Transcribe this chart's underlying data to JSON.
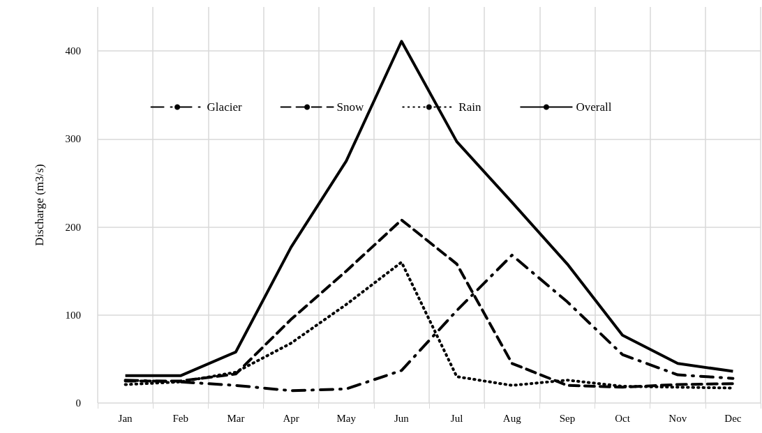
{
  "chart_data": {
    "type": "line",
    "ylabel": "Discharge (m3/s)",
    "categories": [
      "Jan",
      "Feb",
      "Mar",
      "Apr",
      "May",
      "Jun",
      "Jul",
      "Aug",
      "Sep",
      "Oct",
      "Nov",
      "Dec"
    ],
    "series": [
      {
        "name": "Glacier",
        "color": "#000000",
        "line_style": "dashdot",
        "values": [
          26,
          24,
          20,
          14,
          16,
          37,
          105,
          168,
          115,
          55,
          32,
          28
        ]
      },
      {
        "name": "Snow",
        "color": "#000000",
        "line_style": "dashed",
        "values": [
          25,
          25,
          33,
          95,
          150,
          208,
          158,
          45,
          20,
          18,
          21,
          22
        ]
      },
      {
        "name": "Rain",
        "color": "#000000",
        "line_style": "dotted",
        "values": [
          21,
          24,
          35,
          68,
          112,
          160,
          30,
          20,
          26,
          19,
          18,
          17
        ]
      },
      {
        "name": "Overall",
        "color": "#000000",
        "line_style": "solid",
        "values": [
          31,
          31,
          58,
          177,
          275,
          411,
          297,
          228,
          158,
          77,
          45,
          36
        ]
      }
    ],
    "ylim": [
      0,
      450
    ],
    "yticks": [
      0,
      100,
      200,
      300,
      400
    ],
    "grid": true,
    "legend": "top",
    "marker": "none"
  }
}
